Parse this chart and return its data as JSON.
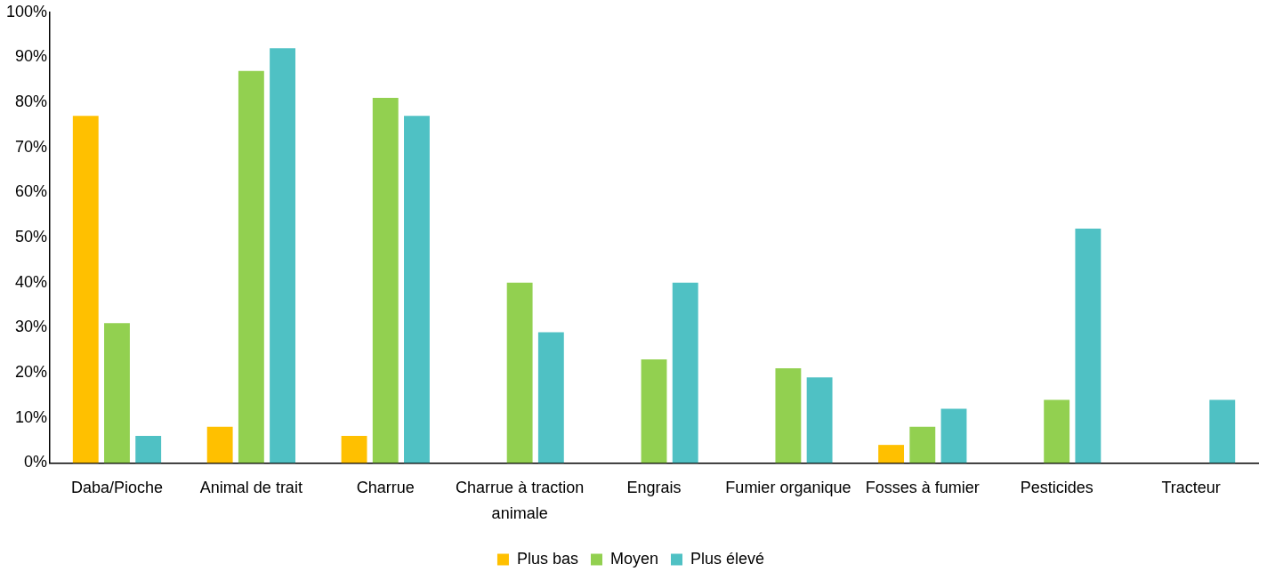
{
  "chart_data": {
    "type": "bar",
    "categories": [
      "Daba/Pioche",
      "Animal de trait",
      "Charrue",
      "Charrue à traction animale",
      "Engrais",
      "Fumier organique",
      "Fosses à fumier",
      "Pesticides",
      "Tracteur"
    ],
    "series": [
      {
        "name": "Plus bas",
        "color": "#ffc000",
        "values": [
          77,
          8,
          6,
          0,
          0,
          0,
          4,
          0,
          0
        ]
      },
      {
        "name": "Moyen",
        "color": "#92d050",
        "values": [
          31,
          87,
          81,
          40,
          23,
          21,
          8,
          14,
          0
        ]
      },
      {
        "name": "Plus élevé",
        "color": "#4fc1c4",
        "values": [
          6,
          92,
          77,
          29,
          40,
          19,
          12,
          52,
          14
        ]
      }
    ],
    "ylim": [
      0,
      100
    ],
    "yticks": [
      {
        "value": 0,
        "label": "0%"
      },
      {
        "value": 10,
        "label": "10%"
      },
      {
        "value": 20,
        "label": "20%"
      },
      {
        "value": 30,
        "label": "30%"
      },
      {
        "value": 40,
        "label": "40%"
      },
      {
        "value": 50,
        "label": "50%"
      },
      {
        "value": 60,
        "label": "60%"
      },
      {
        "value": 70,
        "label": "70%"
      },
      {
        "value": 80,
        "label": "80%"
      },
      {
        "value": 90,
        "label": "90%"
      },
      {
        "value": 100,
        "label": "100%"
      }
    ],
    "grid": false,
    "legend": "bottom"
  }
}
